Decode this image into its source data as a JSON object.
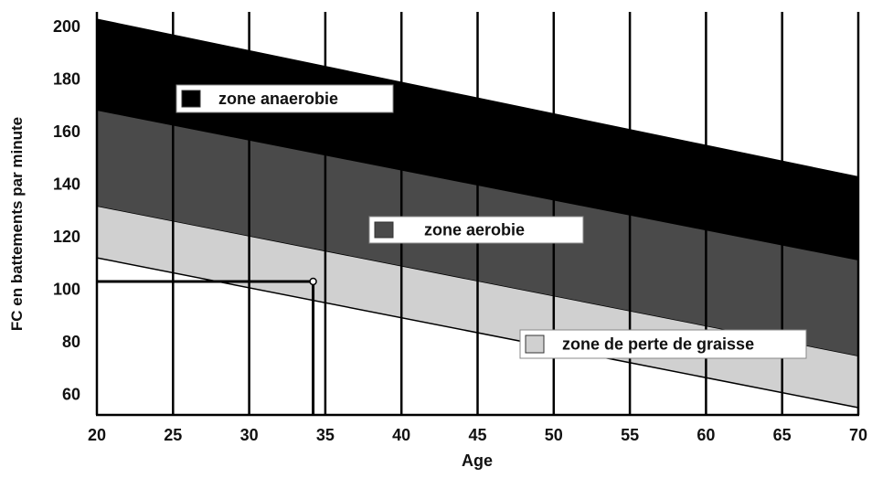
{
  "chart_data": {
    "type": "area",
    "title": "",
    "xlabel": "Age",
    "ylabel": "FC en battements par minute",
    "xlim": [
      20,
      70
    ],
    "ylim": [
      52,
      205
    ],
    "xticks": [
      20,
      25,
      30,
      35,
      40,
      45,
      50,
      55,
      60,
      65,
      70
    ],
    "yticks": [
      60,
      80,
      100,
      120,
      140,
      160,
      180,
      200
    ],
    "grid": "vertical lines",
    "bands": [
      {
        "name": "zone anaerobie",
        "color": "#000000",
        "upper": [
          [
            20,
            203
          ],
          [
            70,
            143
          ]
        ],
        "lower": [
          [
            20,
            168
          ],
          [
            70,
            111
          ]
        ]
      },
      {
        "name": "zone aerobie",
        "color": "#4a4a4a",
        "upper": [
          [
            20,
            168
          ],
          [
            70,
            111
          ]
        ],
        "lower": [
          [
            20,
            131.5
          ],
          [
            70,
            74.5
          ]
        ]
      },
      {
        "name": "zone de perte de graisse",
        "color": "#d0d0d0",
        "upper": [
          [
            20,
            131.5
          ],
          [
            70,
            74.5
          ]
        ],
        "lower": [
          [
            20,
            112
          ],
          [
            70,
            55
          ]
        ]
      }
    ],
    "marker": {
      "age": 34.2,
      "fc": 103
    },
    "legend_placement": "inside, one label per band"
  }
}
